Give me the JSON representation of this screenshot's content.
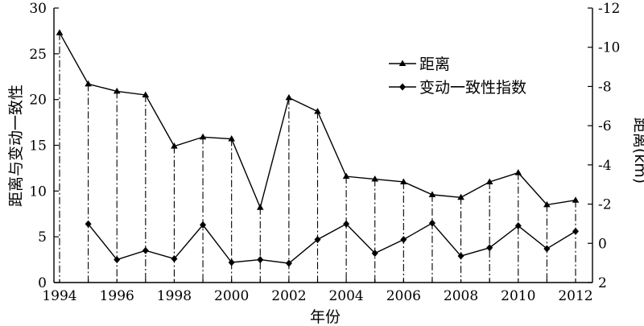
{
  "chart_data": {
    "type": "line",
    "xlabel": "年份",
    "ylabel_left": "距离与变动一致性",
    "ylabel_right": "距离(km)",
    "x_ticks": [
      "1994",
      "1996",
      "1998",
      "2000",
      "2002",
      "2004",
      "2006",
      "2008",
      "2010",
      "2012"
    ],
    "left_ticks": [
      "0",
      "5",
      "10",
      "15",
      "20",
      "25",
      "30"
    ],
    "right_ticks": [
      "-12",
      "-10",
      "-8",
      "-6",
      "-4",
      "-2",
      "0",
      "2"
    ],
    "left_ylim": [
      0,
      30
    ],
    "right_ylim": [
      2,
      -12
    ],
    "x": [
      1994,
      1995,
      1996,
      1997,
      1998,
      1999,
      2000,
      2001,
      2002,
      2003,
      2004,
      2005,
      2006,
      2007,
      2008,
      2009,
      2010,
      2011,
      2012
    ],
    "series": [
      {
        "name": "距离",
        "marker": "triangle",
        "axis": "left",
        "values": [
          27.3,
          21.7,
          20.9,
          20.5,
          14.9,
          15.9,
          15.7,
          8.2,
          20.2,
          18.7,
          11.6,
          11.3,
          11.0,
          9.6,
          9.3,
          11.0,
          12.0,
          8.5,
          9.0
        ]
      },
      {
        "name": "变动一致性指数",
        "marker": "diamond",
        "axis": "left",
        "values": [
          null,
          6.4,
          2.5,
          3.5,
          2.6,
          6.3,
          2.2,
          2.5,
          2.1,
          4.7,
          6.4,
          3.2,
          4.7,
          6.5,
          2.9,
          3.8,
          6.2,
          3.7,
          5.6
        ]
      }
    ],
    "legend_position": "top-center-right",
    "grid": false
  }
}
